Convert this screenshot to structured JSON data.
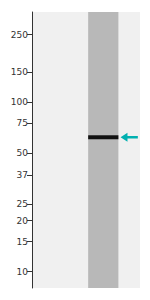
{
  "chart_data": {
    "type": "scatter",
    "log": "y",
    "ylim": [
      8,
      340
    ],
    "yticks": [
      250,
      150,
      100,
      75,
      50,
      37,
      25,
      20,
      15,
      10
    ],
    "tick_labels": "y",
    "grid": false,
    "series": [
      {
        "values": [
          62
        ],
        "color": "#111111",
        "marker": "band"
      },
      {
        "values": [
          62
        ],
        "color": "#00b0b0",
        "marker": "arrow"
      }
    ]
  }
}
